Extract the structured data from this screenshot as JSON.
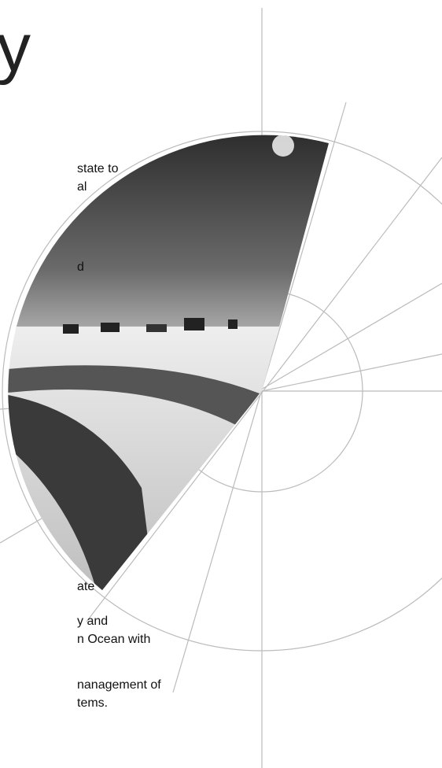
{
  "heading": "y",
  "paragraphs": [
    {
      "lines": [
        "state to",
        "al"
      ]
    },
    {
      "lines": [
        "d"
      ]
    },
    {
      "lines": [
        "ate"
      ]
    },
    {
      "lines": [
        "y and",
        "n Ocean with"
      ]
    },
    {
      "lines": [
        "nanagement of",
        "tems."
      ]
    }
  ]
}
